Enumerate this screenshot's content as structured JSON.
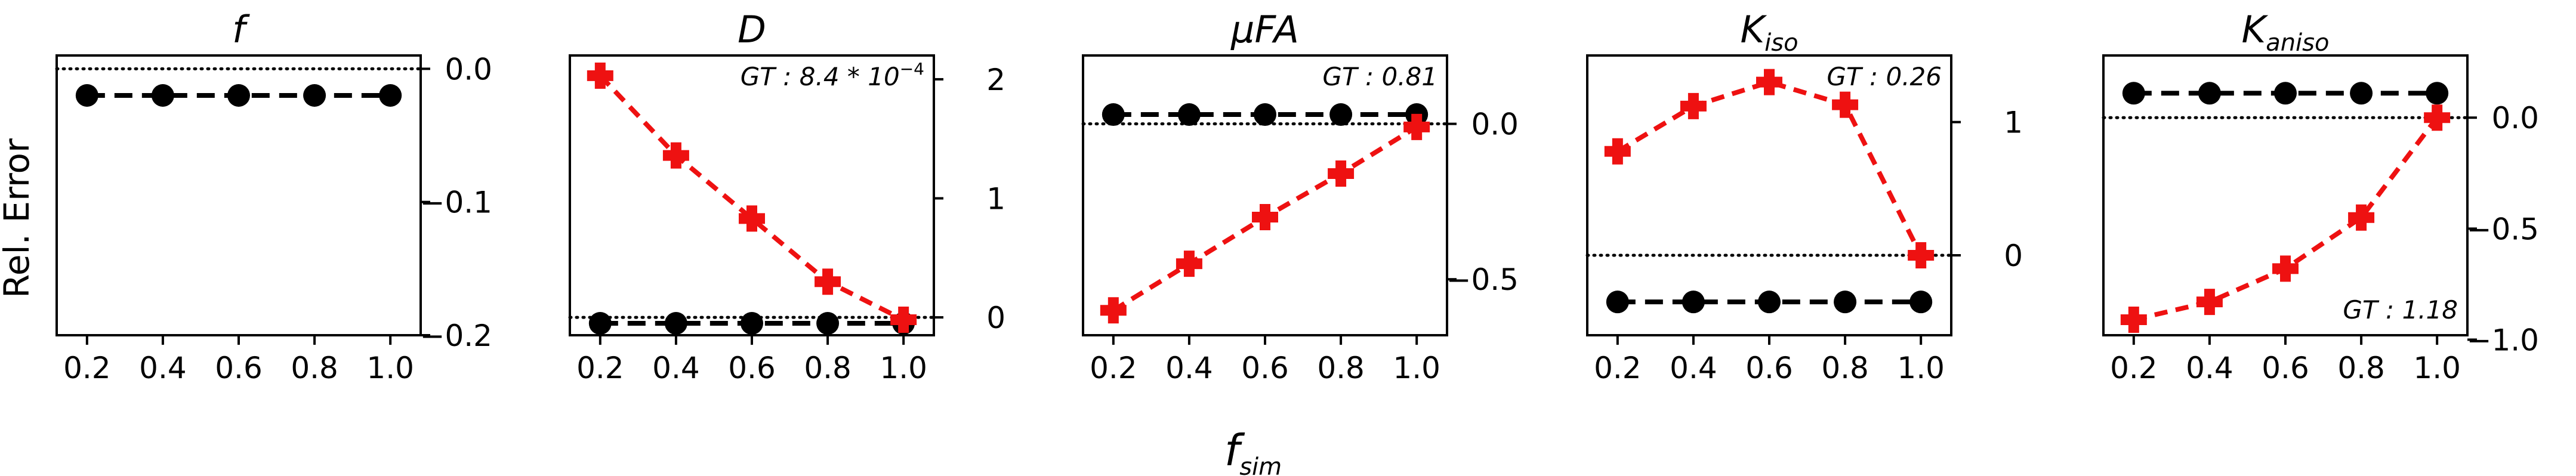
{
  "figure": {
    "ylabel": "Rel. Error",
    "xlabel_main": "f",
    "xlabel_sub": "sim"
  },
  "chart_data": [
    {
      "type": "line",
      "title": "f",
      "title_sub": "",
      "x": [
        0.2,
        0.4,
        0.6,
        0.8,
        1.0
      ],
      "xticks": [
        "0.2",
        "0.4",
        "0.6",
        "0.8",
        "1.0"
      ],
      "ylim": [
        -0.2,
        0.01
      ],
      "yticks": [
        0.0,
        -0.1,
        -0.2
      ],
      "ytick_labels": [
        "0.0",
        "−0.1",
        "−0.2"
      ],
      "yaxis_side": "left",
      "reference_line": 0.0,
      "gt_label": "",
      "gt_position": "",
      "series": [
        {
          "marker": "circle",
          "color": "#000000",
          "values": [
            -0.02,
            -0.02,
            -0.02,
            -0.02,
            -0.02
          ]
        }
      ]
    },
    {
      "type": "line",
      "title": "D",
      "title_sub": "",
      "x": [
        0.2,
        0.4,
        0.6,
        0.8,
        1.0
      ],
      "xticks": [
        "0.2",
        "0.4",
        "0.6",
        "0.8",
        "1.0"
      ],
      "ylim": [
        -0.15,
        2.2
      ],
      "yticks": [
        0,
        1,
        2
      ],
      "ytick_labels": [
        "0",
        "1",
        "2"
      ],
      "yaxis_side": "right",
      "reference_line": 0.0,
      "gt_label": "GT : 8.4 * 10",
      "gt_sup": "−4",
      "gt_position": "top-right",
      "series": [
        {
          "marker": "circle",
          "color": "#000000",
          "values": [
            -0.05,
            -0.05,
            -0.05,
            -0.05,
            -0.05
          ]
        },
        {
          "marker": "plus",
          "color": "#ee1111",
          "values": [
            2.03,
            1.36,
            0.83,
            0.3,
            -0.02
          ]
        }
      ]
    },
    {
      "type": "line",
      "title": "μFA",
      "title_sub": "",
      "x": [
        0.2,
        0.4,
        0.6,
        0.8,
        1.0
      ],
      "xticks": [
        "0.2",
        "0.4",
        "0.6",
        "0.8",
        "1.0"
      ],
      "ylim": [
        -0.68,
        0.22
      ],
      "yticks": [
        0.0,
        -0.5
      ],
      "ytick_labels": [
        "0.0",
        "−0.5"
      ],
      "yaxis_side": "right",
      "reference_line": 0.0,
      "gt_label": "GT : 0.81",
      "gt_sup": "",
      "gt_position": "top-right",
      "series": [
        {
          "marker": "circle",
          "color": "#000000",
          "values": [
            0.03,
            0.03,
            0.03,
            0.03,
            0.03
          ]
        },
        {
          "marker": "plus",
          "color": "#ee1111",
          "values": [
            -0.6,
            -0.45,
            -0.3,
            -0.16,
            -0.01
          ]
        }
      ]
    },
    {
      "type": "line",
      "title": "K",
      "title_sub": "iso",
      "x": [
        0.2,
        0.4,
        0.6,
        0.8,
        1.0
      ],
      "xticks": [
        "0.2",
        "0.4",
        "0.6",
        "0.8",
        "1.0"
      ],
      "ylim": [
        -0.6,
        1.5
      ],
      "yticks": [
        0,
        1
      ],
      "ytick_labels": [
        "0",
        "1"
      ],
      "yaxis_side": "right",
      "reference_line": 0.0,
      "gt_label": "GT : 0.26",
      "gt_sup": "",
      "gt_position": "top-right",
      "series": [
        {
          "marker": "circle",
          "color": "#000000",
          "values": [
            -0.35,
            -0.35,
            -0.35,
            -0.35,
            -0.35
          ]
        },
        {
          "marker": "plus",
          "color": "#ee1111",
          "values": [
            0.78,
            1.12,
            1.3,
            1.13,
            0.0
          ]
        }
      ]
    },
    {
      "type": "line",
      "title": "K",
      "title_sub": "aniso",
      "x": [
        0.2,
        0.4,
        0.6,
        0.8,
        1.0
      ],
      "xticks": [
        "0.2",
        "0.4",
        "0.6",
        "0.8",
        "1.0"
      ],
      "ylim": [
        -0.98,
        0.28
      ],
      "yticks": [
        0.0,
        -0.5,
        -1.0
      ],
      "ytick_labels": [
        "0.0",
        "−0.5",
        "−1.0"
      ],
      "yaxis_side": "right",
      "reference_line": 0.0,
      "gt_label": "GT : 1.18",
      "gt_sup": "",
      "gt_position": "bottom-right",
      "series": [
        {
          "marker": "circle",
          "color": "#000000",
          "values": [
            0.11,
            0.11,
            0.11,
            0.11,
            0.11
          ]
        },
        {
          "marker": "plus",
          "color": "#ee1111",
          "values": [
            -0.91,
            -0.83,
            -0.68,
            -0.45,
            0.0
          ]
        }
      ]
    }
  ]
}
